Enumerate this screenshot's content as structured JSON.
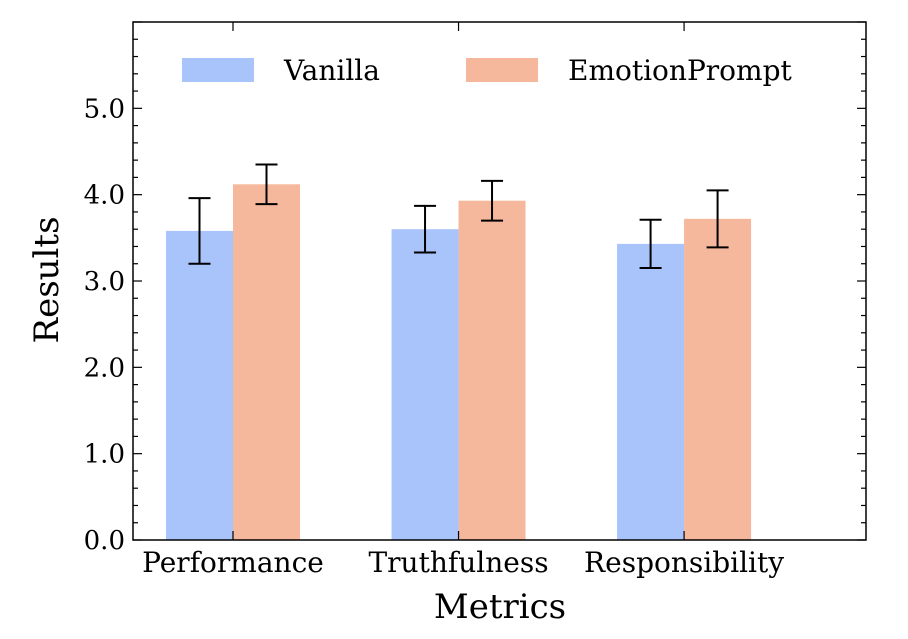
{
  "chart_data": {
    "type": "bar",
    "categories": [
      "Performance",
      "Truthfulness",
      "Responsibility"
    ],
    "series": [
      {
        "name": "Vanilla",
        "color": "#a9c4fb",
        "values": [
          3.58,
          3.6,
          3.43
        ],
        "errors": [
          0.38,
          0.27,
          0.28
        ]
      },
      {
        "name": "EmotionPrompt",
        "color": "#f5b89c",
        "values": [
          4.12,
          3.93,
          3.72
        ],
        "errors": [
          0.23,
          0.23,
          0.33
        ]
      }
    ],
    "title": "",
    "xlabel": "Metrics",
    "ylabel": "Results",
    "ylim": [
      0,
      6.0
    ],
    "yticks": [
      "0.0",
      "1.0",
      "2.0",
      "3.0",
      "4.0",
      "5.0"
    ],
    "grid": false,
    "legend": "top, horizontal"
  }
}
